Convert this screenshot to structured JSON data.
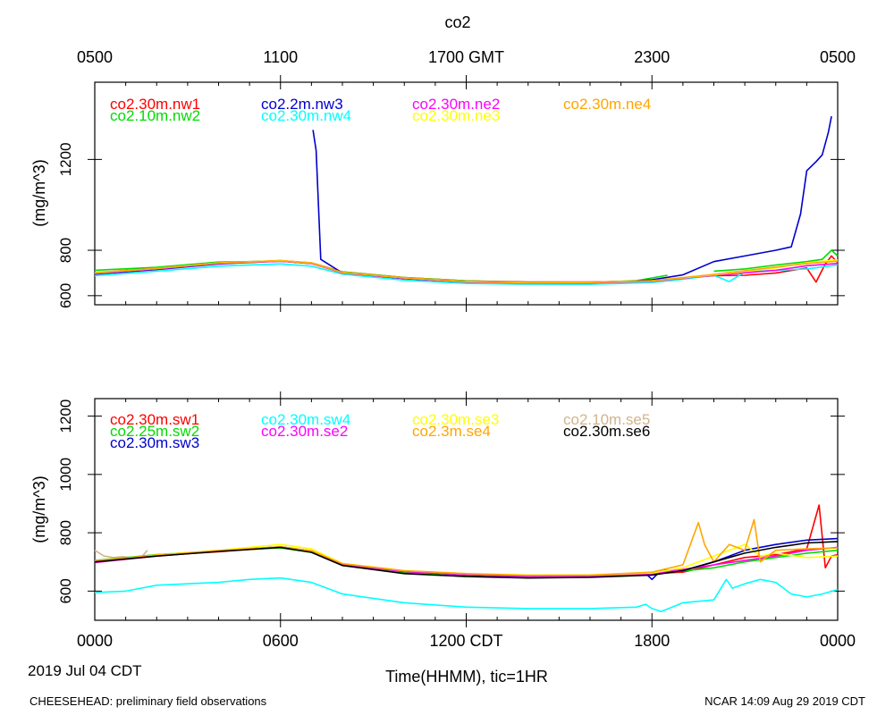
{
  "chart_data": [
    {
      "type": "line",
      "title": "co2",
      "ylabel": "(mg/m^3)",
      "ylim": [
        560,
        1540
      ],
      "yticks": [
        600,
        800,
        1200
      ],
      "top_tick_labels": [
        "0500",
        "1100",
        "1700 GMT",
        "2300",
        "0500"
      ],
      "legend": [
        {
          "name": "co2.30m.nw1",
          "color": "#ff0000"
        },
        {
          "name": "co2.10m.nw2",
          "color": "#00dd00"
        },
        {
          "name": "co2.2m.nw3",
          "color": "#0000cc"
        },
        {
          "name": "co2.30m.nw4",
          "color": "#00ffff"
        },
        {
          "name": "co2.30m.ne2",
          "color": "#ff00ff"
        },
        {
          "name": "co2.30m.ne3",
          "color": "#ffff00"
        },
        {
          "name": "co2.30m.ne4",
          "color": "#ffa500"
        }
      ],
      "series": [
        {
          "name": "co2.30m.nw1",
          "color": "#ff0000",
          "x": [
            0,
            2,
            4,
            6,
            7,
            8,
            10,
            12,
            14,
            16,
            18,
            20,
            21,
            22,
            23,
            23.3,
            23.6,
            23.8,
            24
          ],
          "y": [
            700,
            722,
            745,
            755,
            745,
            705,
            680,
            665,
            660,
            660,
            665,
            688,
            690,
            700,
            722,
            660,
            740,
            775,
            745
          ]
        },
        {
          "name": "co2.10m.nw2",
          "color": "#00dd00",
          "x": [
            0,
            2,
            4,
            6,
            7,
            8,
            10,
            12,
            14,
            16,
            17.5,
            18.5,
            19,
            20,
            21,
            22,
            23,
            23.5,
            23.8,
            24
          ],
          "y": [
            712,
            725,
            748,
            752,
            742,
            705,
            680,
            665,
            658,
            658,
            666,
            690,
            null,
            708,
            718,
            735,
            750,
            760,
            800,
            775
          ]
        },
        {
          "name": "co2.2m.nw3",
          "color": "#0000cc",
          "x": [
            0,
            2,
            4,
            6,
            7,
            7,
            7.05,
            7.15,
            7.3,
            8,
            10,
            12,
            14,
            16,
            17,
            18,
            19,
            20,
            21,
            22,
            22.5,
            22.8,
            23,
            23.3,
            23.5,
            23.7,
            23.8
          ],
          "y": [
            695,
            715,
            740,
            752,
            742,
            null,
            1330,
            1240,
            760,
            700,
            675,
            660,
            655,
            655,
            660,
            670,
            692,
            750,
            775,
            800,
            815,
            960,
            1150,
            1190,
            1220,
            1320,
            1390
          ]
        },
        {
          "name": "co2.30m.nw4",
          "color": "#00ffff",
          "x": [
            0,
            2,
            4,
            6,
            7,
            8,
            10,
            12,
            14,
            16,
            18,
            19,
            20,
            20.5,
            21,
            22,
            23,
            24
          ],
          "y": [
            688,
            708,
            730,
            740,
            730,
            695,
            668,
            654,
            650,
            650,
            658,
            672,
            690,
            662,
            705,
            712,
            718,
            735
          ]
        },
        {
          "name": "co2.30m.ne2",
          "color": "#ff00ff",
          "x": [
            0,
            2,
            4,
            6,
            7,
            8,
            10,
            12,
            14,
            16,
            18,
            20,
            22,
            23,
            24
          ],
          "y": [
            698,
            718,
            742,
            752,
            742,
            700,
            676,
            660,
            655,
            656,
            663,
            690,
            712,
            732,
            742
          ]
        },
        {
          "name": "co2.30m.ne3",
          "color": "#ffff00",
          "x": [
            0,
            2,
            4,
            6,
            7,
            8,
            10,
            12,
            14,
            16,
            18,
            20,
            22,
            23,
            24
          ],
          "y": [
            700,
            720,
            744,
            754,
            744,
            702,
            678,
            662,
            657,
            658,
            665,
            692,
            722,
            745,
            758
          ]
        },
        {
          "name": "co2.30m.ne4",
          "color": "#ffa500",
          "x": [
            0,
            2,
            4,
            6,
            7,
            8,
            10,
            12,
            14,
            16,
            18,
            20,
            22,
            23,
            24
          ],
          "y": [
            702,
            720,
            744,
            753,
            743,
            703,
            679,
            663,
            658,
            659,
            666,
            694,
            726,
            742,
            752
          ]
        }
      ]
    },
    {
      "type": "line",
      "ylabel": "(mg/m^3)",
      "ylim": [
        500,
        1260
      ],
      "yticks": [
        600,
        800,
        1000,
        1200
      ],
      "x_tick_labels": [
        "0000",
        "0600",
        "1200 CDT",
        "1800",
        "0000"
      ],
      "xlabel": "Time(HHMM), tic=1HR",
      "date_label": "2019 Jul 04 CDT",
      "legend": [
        {
          "name": "co2.30m.sw1",
          "color": "#ff0000"
        },
        {
          "name": "co2.25m.sw2",
          "color": "#00dd00"
        },
        {
          "name": "co2.30m.sw3",
          "color": "#0000cc"
        },
        {
          "name": "co2.30m.sw4",
          "color": "#00ffff"
        },
        {
          "name": "co2.30m.se2",
          "color": "#ff00ff"
        },
        {
          "name": "co2.30m.se3",
          "color": "#ffff00"
        },
        {
          "name": "co2.3m.se4",
          "color": "#ffa500"
        },
        {
          "name": "co2.10m.se5",
          "color": "#d2b48c"
        },
        {
          "name": "co2.30m.se6",
          "color": "#000000"
        }
      ],
      "series": [
        {
          "name": "co2.10m.se5",
          "color": "#d2b48c",
          "x": [
            0,
            0.3,
            0.6,
            0.9,
            1.2,
            1.5,
            1.7
          ],
          "y": [
            740,
            720,
            715,
            718,
            715,
            715,
            740
          ]
        },
        {
          "name": "co2.30m.sw4",
          "color": "#00ffff",
          "x": [
            0,
            1,
            2,
            4,
            5,
            6,
            7,
            8,
            10,
            12,
            14,
            16,
            17.5,
            17.8,
            18,
            18.3,
            19,
            20,
            20.4,
            20.6,
            21,
            21.5,
            22,
            22.5,
            23,
            23.5,
            24
          ],
          "y": [
            595,
            600,
            620,
            630,
            640,
            645,
            630,
            590,
            560,
            545,
            540,
            540,
            545,
            555,
            540,
            530,
            560,
            570,
            640,
            610,
            625,
            640,
            630,
            590,
            580,
            590,
            605
          ]
        },
        {
          "name": "co2.30m.sw1",
          "color": "#ff0000",
          "x": [
            0,
            2,
            4,
            6,
            7,
            8,
            10,
            12,
            14,
            16,
            18,
            19,
            20,
            21,
            22,
            23,
            23.4,
            23.6,
            23.8,
            24
          ],
          "y": [
            700,
            722,
            735,
            750,
            735,
            690,
            665,
            655,
            650,
            652,
            660,
            665,
            690,
            715,
            725,
            745,
            895,
            680,
            720,
            725
          ]
        },
        {
          "name": "co2.25m.sw2",
          "color": "#00dd00",
          "x": [
            0,
            2,
            4,
            6,
            7,
            8,
            10,
            12,
            14,
            16,
            18,
            20,
            21,
            22,
            23,
            24
          ],
          "y": [
            705,
            725,
            738,
            748,
            733,
            688,
            662,
            652,
            648,
            650,
            658,
            680,
            700,
            715,
            730,
            740
          ]
        },
        {
          "name": "co2.30m.sw3",
          "color": "#0000cc",
          "x": [
            0,
            2,
            4,
            6,
            7,
            8,
            10,
            12,
            14,
            16,
            17.8,
            18,
            18.3,
            19,
            20,
            21,
            22,
            23,
            24
          ],
          "y": [
            700,
            722,
            738,
            752,
            738,
            692,
            668,
            656,
            650,
            652,
            660,
            640,
            672,
            670,
            700,
            740,
            760,
            775,
            780
          ]
        },
        {
          "name": "co2.30m.se2",
          "color": "#ff00ff",
          "x": [
            0,
            2,
            4,
            6,
            7,
            8,
            10,
            12,
            14,
            16,
            18,
            20,
            22,
            23,
            24
          ],
          "y": [
            698,
            720,
            737,
            751,
            737,
            691,
            667,
            656,
            650,
            652,
            658,
            690,
            720,
            740,
            750
          ]
        },
        {
          "name": "co2.30m.se3",
          "color": "#ffff00",
          "x": [
            0,
            2,
            4,
            6,
            7,
            8,
            10,
            12,
            14,
            16,
            18,
            19,
            20,
            21,
            21.5,
            22,
            23,
            24
          ],
          "y": [
            702,
            724,
            740,
            760,
            745,
            695,
            670,
            660,
            655,
            655,
            662,
            680,
            720,
            760,
            720,
            730,
            715,
            720
          ]
        },
        {
          "name": "co2.3m.se4",
          "color": "#ffa500",
          "x": [
            0,
            2,
            4,
            6,
            7,
            8,
            10,
            12,
            14,
            16,
            18,
            19,
            19.5,
            19.7,
            20,
            20.5,
            21,
            21.3,
            21.5,
            22,
            23,
            24
          ],
          "y": [
            704,
            723,
            739,
            752,
            738,
            694,
            670,
            660,
            654,
            655,
            665,
            690,
            835,
            760,
            700,
            760,
            740,
            845,
            700,
            740,
            745,
            748
          ]
        },
        {
          "name": "co2.30m.se6",
          "color": "#000000",
          "x": [
            0,
            2,
            4,
            6,
            7,
            8,
            10,
            12,
            14,
            16,
            18,
            19,
            20,
            21,
            22,
            23,
            24
          ],
          "y": [
            700,
            720,
            736,
            750,
            733,
            688,
            660,
            650,
            645,
            647,
            655,
            670,
            700,
            730,
            750,
            765,
            770
          ]
        }
      ]
    }
  ],
  "footer": {
    "left": "CHEESEHEAD: preliminary field observations",
    "right": "NCAR 14:09 Aug 29 2019 CDT"
  }
}
